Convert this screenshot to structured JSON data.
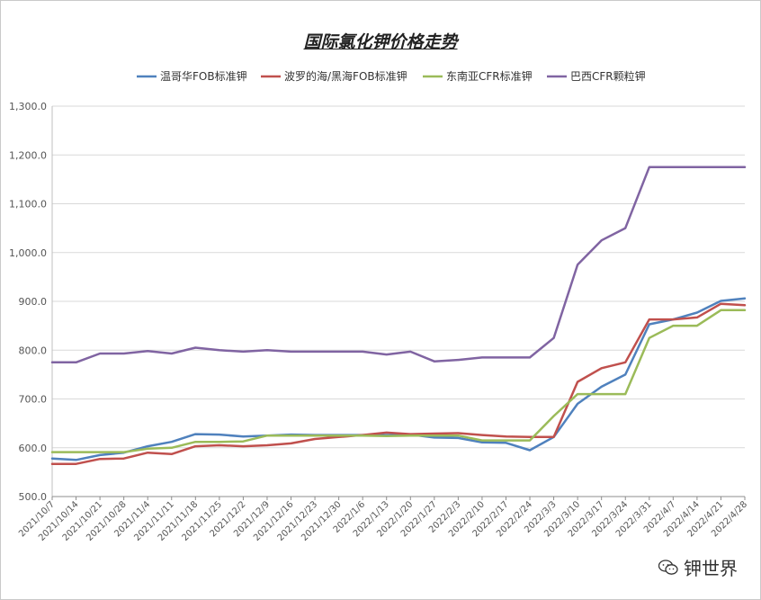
{
  "chart_data": {
    "type": "line",
    "title": "国际氯化钾价格走势",
    "xlabel": "",
    "ylabel": "",
    "ylim": [
      500,
      1300
    ],
    "yticks": [
      "500.0",
      "600.0",
      "700.0",
      "800.0",
      "900.0",
      "1,000.0",
      "1,100.0",
      "1,200.0",
      "1,300.0"
    ],
    "categories": [
      "2021/10/7",
      "2021/10/14",
      "2021/10/21",
      "2021/10/28",
      "2021/11/4",
      "2021/11/11",
      "2021/11/18",
      "2021/11/25",
      "2021/12/2",
      "2021/12/9",
      "2021/12/16",
      "2021/12/23",
      "2021/12/30",
      "2022/1/6",
      "2022/1/13",
      "2022/1/20",
      "2022/1/27",
      "2022/2/3",
      "2022/2/10",
      "2022/2/17",
      "2022/2/24",
      "2022/3/3",
      "2022/3/10",
      "2022/3/17",
      "2022/3/24",
      "2022/3/31",
      "2022/4/7",
      "2022/4/14",
      "2022/4/21",
      "2022/4/28"
    ],
    "grid": true,
    "legend_position": "top",
    "series": [
      {
        "name": "温哥华FOB标准钾",
        "color": "#4f81bd",
        "values": [
          578,
          575,
          585,
          590,
          603,
          612,
          628,
          627,
          623,
          625,
          627,
          626,
          626,
          626,
          626,
          627,
          621,
          620,
          611,
          610,
          595,
          622,
          690,
          725,
          750,
          853,
          863,
          877,
          901,
          906
        ]
      },
      {
        "name": "波罗的海/黑海FOB标准钾",
        "color": "#c0504d",
        "values": [
          567,
          567,
          577,
          578,
          590,
          587,
          603,
          605,
          603,
          605,
          609,
          618,
          622,
          626,
          631,
          628,
          629,
          630,
          626,
          623,
          622,
          622,
          735,
          763,
          775,
          863,
          863,
          867,
          895,
          892
        ]
      },
      {
        "name": "东南亚CFR标准钾",
        "color": "#9bbb59",
        "values": [
          591,
          591,
          591,
          591,
          598,
          600,
          612,
          612,
          613,
          625,
          625,
          625,
          625,
          625,
          624,
          625,
          625,
          625,
          615,
          615,
          615,
          665,
          710,
          710,
          710,
          825,
          850,
          850,
          882,
          882
        ]
      },
      {
        "name": "巴西CFR颗粒钾",
        "color": "#8064a2",
        "values": [
          775,
          775,
          793,
          793,
          798,
          793,
          805,
          800,
          797,
          800,
          797,
          797,
          797,
          797,
          791,
          797,
          777,
          780,
          785,
          785,
          785,
          825,
          975,
          1025,
          1050,
          1175,
          1175,
          1175,
          1175,
          1175
        ]
      }
    ]
  },
  "watermark": {
    "text": "钾世界",
    "icon": "wechat-icon"
  }
}
